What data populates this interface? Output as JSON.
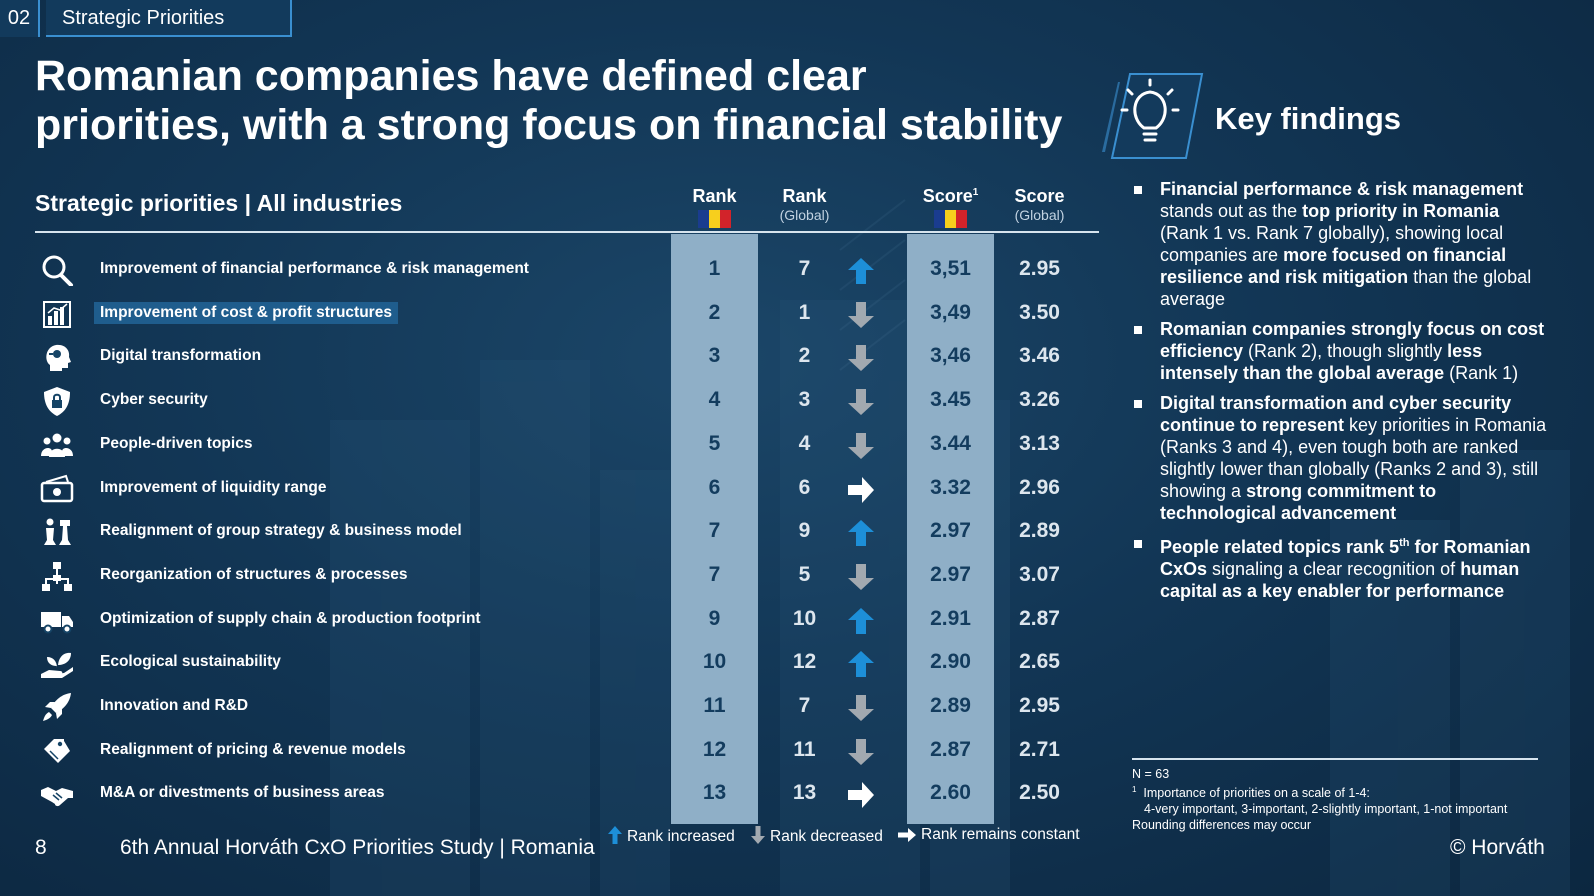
{
  "section": {
    "number": "02",
    "title": "Strategic Priorities"
  },
  "title_line1": "Romanian companies have defined clear",
  "title_line2": "priorities, with a strong focus on financial stability",
  "key_findings": {
    "title": "Key findings",
    "icon": "lightbulb-icon",
    "bullets": [
      [
        {
          "t": "Financial performance & risk management",
          "b": true
        },
        {
          "t": " stands out as the ",
          "b": false
        },
        {
          "t": "top priority in Romania",
          "b": true
        },
        {
          "t": " (Rank 1 vs. Rank 7 globally), showing local companies are ",
          "b": false
        },
        {
          "t": "more focused on financial resilience and risk mitigation",
          "b": true
        },
        {
          "t": " than the global average",
          "b": false
        }
      ],
      [
        {
          "t": "Romanian companies strongly focus on cost efficiency",
          "b": true
        },
        {
          "t": " (Rank 2), though slightly ",
          "b": false
        },
        {
          "t": "less intensely than the global average",
          "b": true
        },
        {
          "t": " (Rank 1)",
          "b": false
        }
      ],
      [
        {
          "t": "Digital transformation and cyber security continue to represent",
          "b": true
        },
        {
          "t": " key priorities in Romania (Ranks 3 and 4), even tough both are ranked slightly lower than globally (Ranks 2 and 3), still showing a ",
          "b": false
        },
        {
          "t": "strong commitment to technological  advancement",
          "b": true
        }
      ],
      [
        {
          "t": "People related topics rank 5",
          "b": true
        },
        {
          "t": "th",
          "b": true,
          "sup": true
        },
        {
          "t": " for Romanian CxOs",
          "b": true
        },
        {
          "t": " signaling a clear recognition of ",
          "b": false
        },
        {
          "t": "human capital as a key enabler for performance",
          "b": true
        }
      ]
    ]
  },
  "table": {
    "title": "Strategic priorities | All industries",
    "columns": {
      "rank": "Rank",
      "rank_global": "Rank",
      "rank_global_sub": "(Global)",
      "score": "Score",
      "score_sup": "1",
      "score_global": "Score",
      "score_global_sub": "(Global)"
    },
    "flag_colors": [
      "#1a3c8f",
      "#f7cf1d",
      "#d2232a"
    ],
    "rows": [
      {
        "icon": "magnifier-icon",
        "label": "Improvement of financial performance & risk management",
        "rank": "1",
        "rank_global": "7",
        "trend": "up",
        "score": "3,51",
        "score_global": "2.95"
      },
      {
        "icon": "bar-chart-icon",
        "label": "Improvement of cost & profit structures",
        "rank": "2",
        "rank_global": "1",
        "trend": "down",
        "score": "3,49",
        "score_global": "3.50",
        "highlight": true
      },
      {
        "icon": "digital-head-icon",
        "label": "Digital transformation",
        "rank": "3",
        "rank_global": "2",
        "trend": "down",
        "score": "3,46",
        "score_global": "3.46"
      },
      {
        "icon": "shield-lock-icon",
        "label": "Cyber security",
        "rank": "4",
        "rank_global": "3",
        "trend": "down",
        "score": "3.45",
        "score_global": "3.26"
      },
      {
        "icon": "people-icon",
        "label": "People-driven topics",
        "rank": "5",
        "rank_global": "4",
        "trend": "down",
        "score": "3.44",
        "score_global": "3.13"
      },
      {
        "icon": "cash-icon",
        "label": "Improvement of liquidity range",
        "rank": "6",
        "rank_global": "6",
        "trend": "constant",
        "score": "3.32",
        "score_global": "2.96"
      },
      {
        "icon": "chess-icon",
        "label": "Realignment of group strategy & business model",
        "rank": "7",
        "rank_global": "9",
        "trend": "up",
        "score": "2.97",
        "score_global": "2.89"
      },
      {
        "icon": "org-chart-icon",
        "label": "Reorganization of structures & processes",
        "rank": "7",
        "rank_global": "5",
        "trend": "down",
        "score": "2.97",
        "score_global": "3.07"
      },
      {
        "icon": "truck-icon",
        "label": "Optimization of supply chain & production footprint",
        "rank": "9",
        "rank_global": "10",
        "trend": "up",
        "score": "2.91",
        "score_global": "2.87"
      },
      {
        "icon": "plant-hand-icon",
        "label": "Ecological sustainability",
        "rank": "10",
        "rank_global": "12",
        "trend": "up",
        "score": "2.90",
        "score_global": "2.65"
      },
      {
        "icon": "rocket-icon",
        "label": "Innovation and R&D",
        "rank": "11",
        "rank_global": "7",
        "trend": "down",
        "score": "2.89",
        "score_global": "2.95"
      },
      {
        "icon": "price-tag-icon",
        "label": "Realignment of pricing & revenue models",
        "rank": "12",
        "rank_global": "11",
        "trend": "down",
        "score": "2.87",
        "score_global": "2.71"
      },
      {
        "icon": "handshake-icon",
        "label": "M&A or divestments of business areas",
        "rank": "13",
        "rank_global": "13",
        "trend": "constant",
        "score": "2.60",
        "score_global": "2.50"
      }
    ]
  },
  "legend": {
    "increased": "Rank increased",
    "decreased": "Rank decreased",
    "constant": "Rank remains constant"
  },
  "trend_colors": {
    "up": "#1d8fd8",
    "down": "#a2a9b0",
    "constant": "#ffffff"
  },
  "footnotes": {
    "n": "N = 63",
    "marker": "1",
    "line1": "Importance of priorities on a scale of 1-4:",
    "line2": "4-very important, 3-important, 2-slightly important, 1-not important",
    "line3": "Rounding differences may occur"
  },
  "footer": {
    "page": "8",
    "study": "6th Annual Horváth CxO Priorities Study | Romania",
    "copyright": "© Horváth"
  }
}
